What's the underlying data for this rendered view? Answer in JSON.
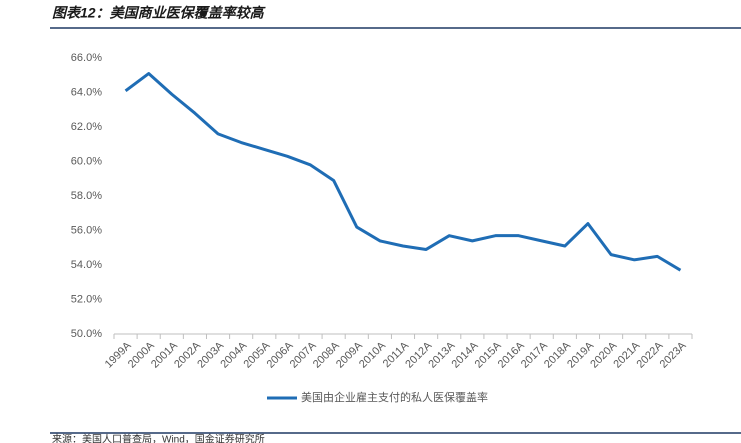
{
  "chart_data": {
    "type": "line",
    "title": "图表12：美国商业医保覆盖率较高",
    "source": "来源：美国人口普查局，Wind，国金证券研究所",
    "categories": [
      "1999A",
      "2000A",
      "2001A",
      "2002A",
      "2003A",
      "2004A",
      "2005A",
      "2006A",
      "2007A",
      "2008A",
      "2009A",
      "2010A",
      "2011A",
      "2012A",
      "2013A",
      "2014A",
      "2015A",
      "2016A",
      "2017A",
      "2018A",
      "2019A",
      "2020A",
      "2021A",
      "2022A",
      "2023A"
    ],
    "series": [
      {
        "name": "美国由企业雇主支付的私人医保覆盖率",
        "color": "#1f6db5",
        "values": [
          64.1,
          65.1,
          63.9,
          62.8,
          61.6,
          61.1,
          60.7,
          60.3,
          59.8,
          58.9,
          56.2,
          55.4,
          55.1,
          54.9,
          55.7,
          55.4,
          55.7,
          55.7,
          55.4,
          55.1,
          56.4,
          54.6,
          54.3,
          54.5,
          53.7
        ]
      }
    ],
    "ylim": [
      50,
      66
    ],
    "yticks": [
      {
        "value": 50,
        "label": "50.0%"
      },
      {
        "value": 52,
        "label": "52.0%"
      },
      {
        "value": 54,
        "label": "54.0%"
      },
      {
        "value": 56,
        "label": "56.0%"
      },
      {
        "value": 58,
        "label": "58.0%"
      },
      {
        "value": 60,
        "label": "60.0%"
      },
      {
        "value": 62,
        "label": "62.0%"
      },
      {
        "value": 64,
        "label": "64.0%"
      },
      {
        "value": 66,
        "label": "66.0%"
      }
    ],
    "grid": false
  }
}
